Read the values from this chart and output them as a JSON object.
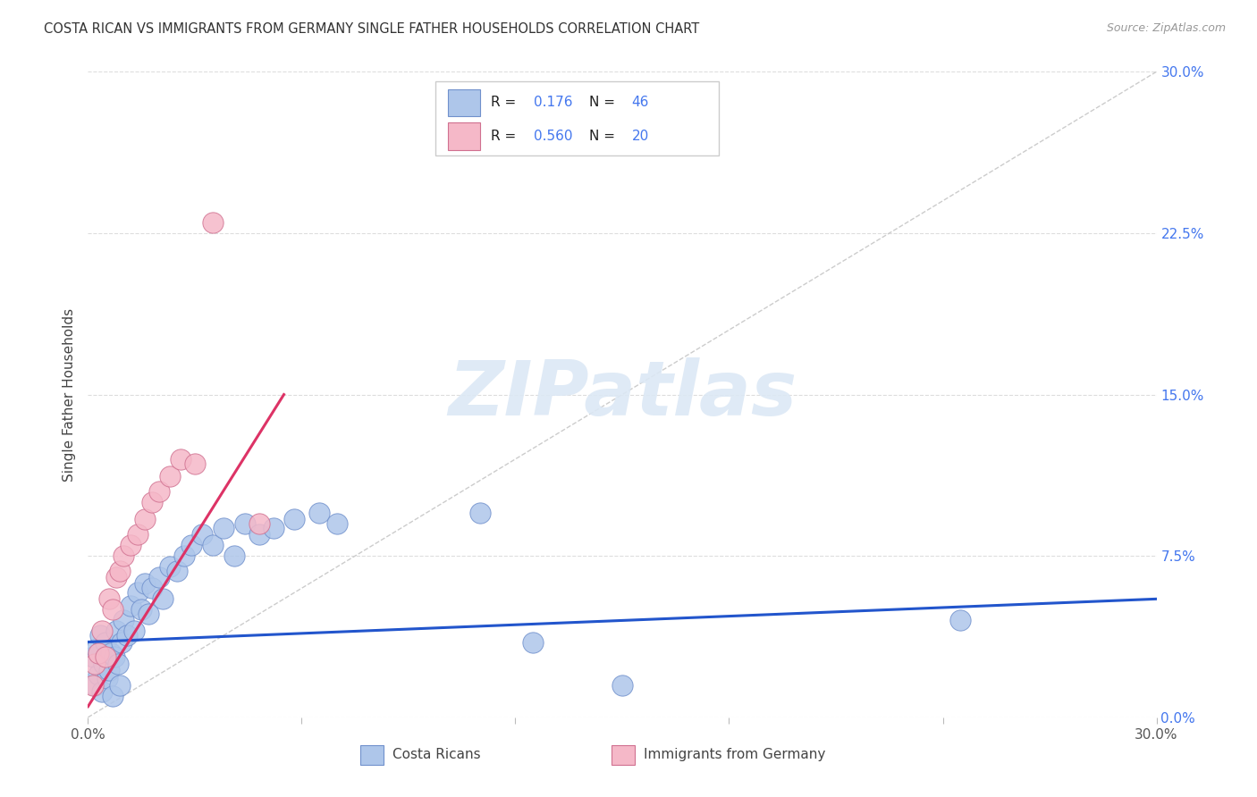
{
  "title": "COSTA RICAN VS IMMIGRANTS FROM GERMANY SINGLE FATHER HOUSEHOLDS CORRELATION CHART",
  "source": "Source: ZipAtlas.com",
  "ylabel": "Single Father Households",
  "ytick_pos": [
    0.0,
    7.5,
    15.0,
    22.5,
    30.0
  ],
  "ytick_labels": [
    "0.0%",
    "7.5%",
    "15.0%",
    "22.5%",
    "30.0%"
  ],
  "xlim": [
    0.0,
    30.0
  ],
  "ylim": [
    0.0,
    30.0
  ],
  "legend_label_blue": "Costa Ricans",
  "legend_label_pink": "Immigrants from Germany",
  "R_blue": "0.176",
  "N_blue": "46",
  "R_pink": "0.560",
  "N_pink": "20",
  "blue_fill": "#aec6ea",
  "blue_edge": "#7090cc",
  "pink_fill": "#f5b8c8",
  "pink_edge": "#d07090",
  "blue_line_color": "#2255cc",
  "pink_line_color": "#dd3366",
  "diag_color": "#cccccc",
  "grid_color": "#dddddd",
  "text_blue": "#4477ee",
  "watermark_color": "#dce8f5",
  "background": "#ffffff",
  "blue_x": [
    0.15,
    0.2,
    0.25,
    0.3,
    0.35,
    0.4,
    0.45,
    0.5,
    0.55,
    0.6,
    0.65,
    0.7,
    0.75,
    0.8,
    0.85,
    0.9,
    0.95,
    1.0,
    1.1,
    1.2,
    1.3,
    1.4,
    1.5,
    1.6,
    1.7,
    1.8,
    2.0,
    2.1,
    2.3,
    2.5,
    2.7,
    2.9,
    3.2,
    3.5,
    3.8,
    4.1,
    4.4,
    4.8,
    5.2,
    5.8,
    6.5,
    7.0,
    11.0,
    12.5,
    15.0,
    24.5
  ],
  "blue_y": [
    2.8,
    1.5,
    3.2,
    2.0,
    3.8,
    1.2,
    2.5,
    3.5,
    1.8,
    2.2,
    3.0,
    1.0,
    2.8,
    4.0,
    2.5,
    1.5,
    3.5,
    4.5,
    3.8,
    5.2,
    4.0,
    5.8,
    5.0,
    6.2,
    4.8,
    6.0,
    6.5,
    5.5,
    7.0,
    6.8,
    7.5,
    8.0,
    8.5,
    8.0,
    8.8,
    7.5,
    9.0,
    8.5,
    8.8,
    9.2,
    9.5,
    9.0,
    9.5,
    3.5,
    1.5,
    4.5
  ],
  "pink_x": [
    0.15,
    0.2,
    0.3,
    0.4,
    0.5,
    0.6,
    0.7,
    0.8,
    0.9,
    1.0,
    1.2,
    1.4,
    1.6,
    1.8,
    2.0,
    2.3,
    2.6,
    3.0,
    4.8,
    3.5
  ],
  "pink_y": [
    1.5,
    2.5,
    3.0,
    4.0,
    2.8,
    5.5,
    5.0,
    6.5,
    6.8,
    7.5,
    8.0,
    8.5,
    9.2,
    10.0,
    10.5,
    11.2,
    12.0,
    11.8,
    9.0,
    23.0
  ],
  "blue_reg_x0": 0.0,
  "blue_reg_x1": 30.0,
  "blue_reg_y0": 3.5,
  "blue_reg_y1": 5.5,
  "pink_reg_x0": 0.0,
  "pink_reg_x1": 5.5,
  "pink_reg_y0": 0.5,
  "pink_reg_y1": 15.0
}
